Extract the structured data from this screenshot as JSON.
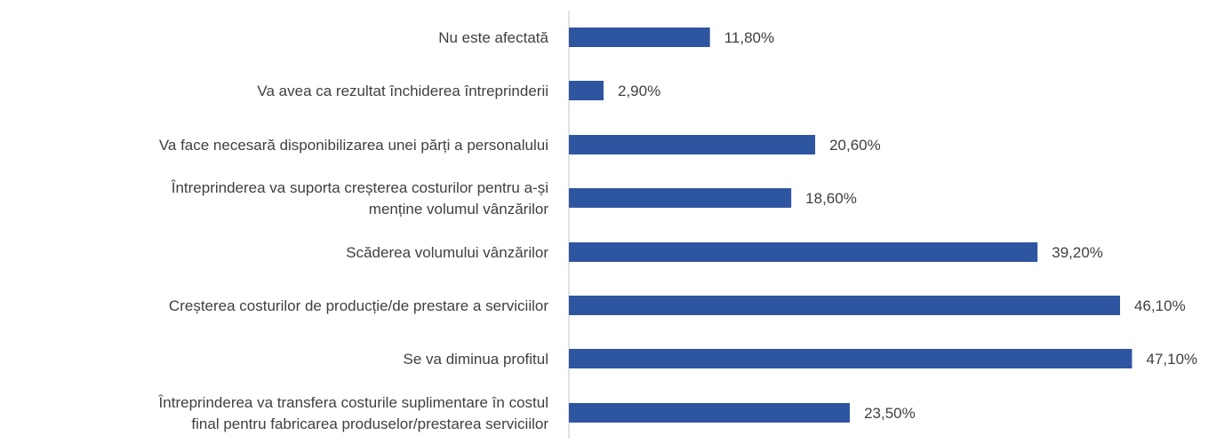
{
  "chart_data": {
    "type": "bar",
    "orientation": "horizontal",
    "categories": [
      "Nu este afectată",
      "Va avea ca rezultat închiderea întreprinderii",
      "Va face necesară disponibilizarea unei părți a personalului",
      "Întreprinderea va suporta creșterea costurilor pentru a-și menține volumul vânzărilor",
      "Scăderea volumului vânzărilor",
      "Creșterea costurilor de producție/de prestare a serviciilor",
      "Se va diminua profitul",
      "Întreprinderea va transfera costurile suplimentare în costul final pentru fabricarea produselor/prestarea serviciilor"
    ],
    "category_lines": [
      [
        "Nu este afectată"
      ],
      [
        "Va avea ca rezultat închiderea întreprinderii"
      ],
      [
        "Va face necesară disponibilizarea unei părți a personalului"
      ],
      [
        "Întreprinderea va suporta creșterea costurilor pentru a-și",
        "menține volumul vânzărilor"
      ],
      [
        "Scăderea volumului vânzărilor"
      ],
      [
        "Creșterea costurilor de producție/de prestare a serviciilor"
      ],
      [
        "Se va diminua profitul"
      ],
      [
        "Întreprinderea va transfera costurile suplimentare în costul",
        "final pentru fabricarea produselor/prestarea serviciilor"
      ]
    ],
    "values": [
      11.8,
      2.9,
      20.6,
      18.6,
      39.2,
      46.1,
      47.1,
      23.5
    ],
    "value_labels": [
      "11,80%",
      "2,90%",
      "20,60%",
      "18,60%",
      "39,20%",
      "46,10%",
      "47,10%",
      "23,50%"
    ],
    "xlim": [
      0,
      50
    ],
    "unit": "%",
    "grid": false,
    "legend": "none",
    "colors": {
      "bar": "#2E559F",
      "axis": "#D9D9D9",
      "text": "#404040"
    }
  }
}
